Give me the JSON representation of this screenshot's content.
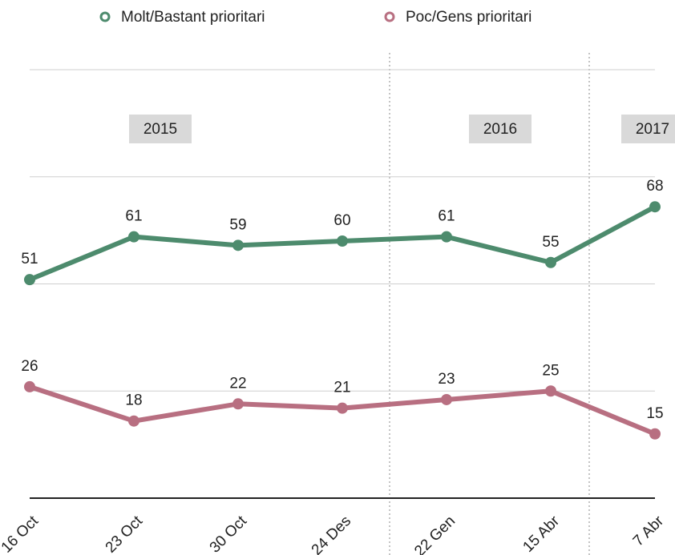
{
  "chart_data": {
    "type": "line",
    "categories": [
      "16 Oct",
      "23 Oct",
      "30 Oct",
      "24 Des",
      "22 Gen",
      "15 Abr",
      "7 Abr"
    ],
    "series": [
      {
        "name": "Molt/Bastant prioritari",
        "color": "#4d8b6d",
        "values": [
          51,
          61,
          59,
          60,
          61,
          55,
          68
        ]
      },
      {
        "name": "Poc/Gens prioritari",
        "color": "#b86f81",
        "values": [
          26,
          18,
          22,
          21,
          23,
          25,
          15
        ]
      }
    ],
    "annotations": [
      "2015",
      "2016",
      "2017"
    ],
    "ylim": [
      0,
      100
    ],
    "yticks": [
      0,
      25,
      50,
      75,
      100
    ],
    "grid": true,
    "legend": "top"
  }
}
